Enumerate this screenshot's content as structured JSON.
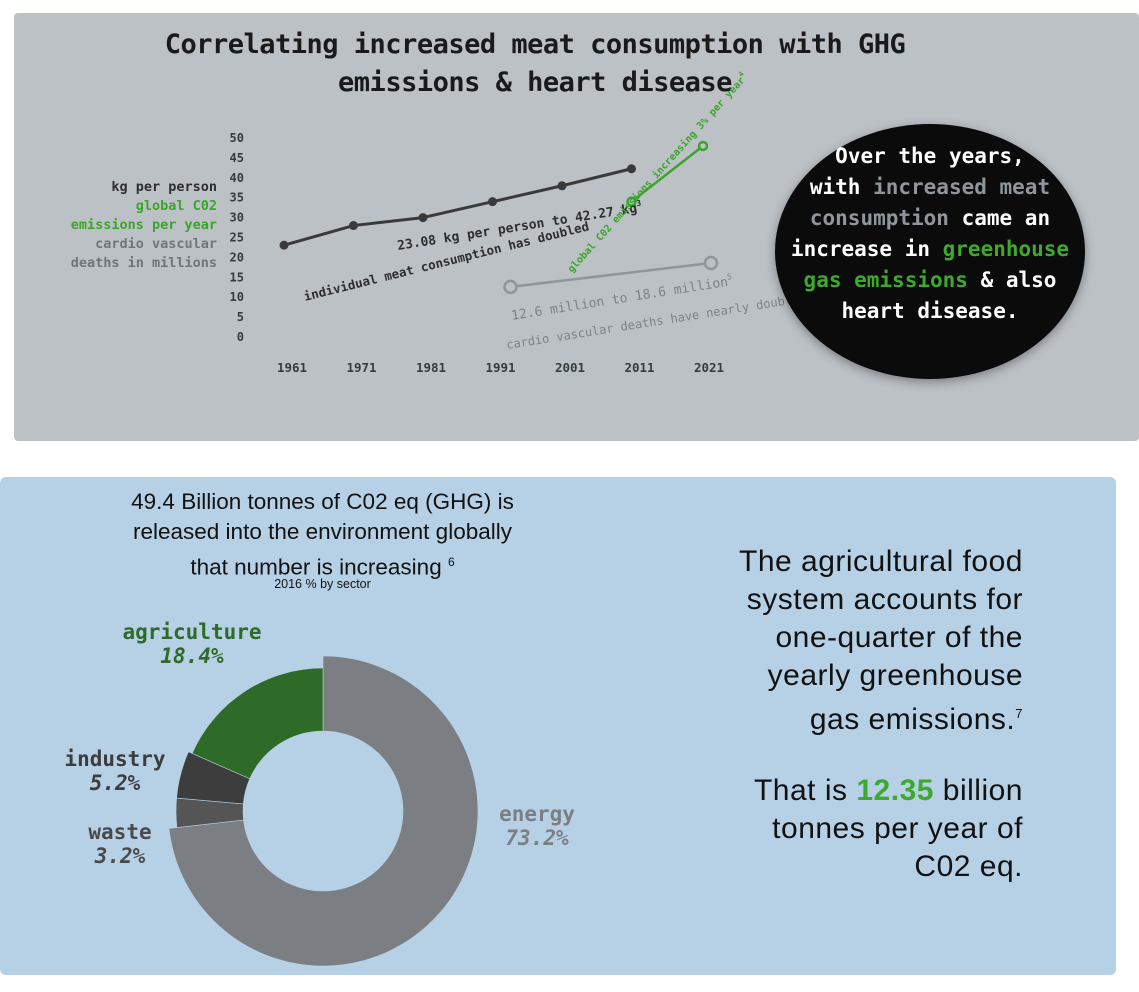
{
  "colors": {
    "meat": "#3a3a3a",
    "co2": "#3aa52a",
    "cardio": "#8f969b",
    "agriculture": "#2f6b28",
    "industry": "#3d3d3d",
    "waste": "#555555",
    "energy": "#7b7f83",
    "top_bg": "#bcc1c6",
    "bottom_bg": "#b6d1e6"
  },
  "top": {
    "title_line1": "Correlating increased meat consumption with GHG",
    "title_line2": "emissions & heart disease",
    "legend": {
      "meat": "kg per person",
      "co2_line1": "global C02",
      "co2_line2": "emissions per year",
      "cardio_line1": "cardio vascular",
      "cardio_line2": "deaths in millions"
    },
    "annotations": {
      "meat_range": "23.08 kg per person to 42.27 kg",
      "meat_ref": "3",
      "meat_note": "individual meat consumption has doubled",
      "co2_note": "global C02 emissions increasing 3% per year",
      "co2_ref": "4",
      "cardio_range": "12.6 million  to  18.6 million",
      "cardio_ref": "5",
      "cardio_note": "cardio vascular deaths have nearly doubled"
    },
    "circle": {
      "l1": "Over the years,",
      "l2a": "with ",
      "l2b": "increased meat",
      "l3a": "consumption",
      "l3b": " came an",
      "l4a": "increase in ",
      "l4b": "greenhouse",
      "l5a": "gas emissions",
      "l5b": " & also",
      "l6": "heart disease."
    }
  },
  "bottom": {
    "heading_l1": "49.4 Billion tonnes of C02 eq (GHG) is",
    "heading_l2": "released into the environment globally",
    "heading_l3": "that number is increasing",
    "heading_ref": "6",
    "subheading": "2016 % by sector",
    "labels": {
      "agriculture": "agriculture",
      "agriculture_pct": "18.4%",
      "industry": "industry",
      "industry_pct": "5.2%",
      "waste": "waste",
      "waste_pct": "3.2%",
      "energy": "energy",
      "energy_pct": "73.2%"
    },
    "right_l1": "The agricultural food",
    "right_l2": "system accounts for",
    "right_l3": "one-quarter of the",
    "right_l4": "yearly greenhouse",
    "right_l5": "gas emissions.",
    "right_ref": "7",
    "that_is": "That is ",
    "amount": "12.35",
    "after_amount": " billion",
    "right_l7": "tonnes per year of",
    "right_l8": "C02 eq."
  },
  "chart_data": [
    {
      "type": "line",
      "title": "Correlating increased meat consumption with GHG emissions & heart disease",
      "x_categories": [
        "1961",
        "1971",
        "1981",
        "1991",
        "2001",
        "2011",
        "2021"
      ],
      "y_ticks": [
        0,
        5,
        10,
        15,
        20,
        25,
        30,
        35,
        40,
        45,
        50
      ],
      "ylim": [
        0,
        50
      ],
      "grid": false,
      "series": [
        {
          "name": "kg per person",
          "x": [
            "1961",
            "1971",
            "1981",
            "1991",
            "2001",
            "2011"
          ],
          "values": [
            23.08,
            28,
            30,
            34,
            38,
            42.27
          ]
        },
        {
          "name": "global C02 emissions per year",
          "x": [
            "2011",
            "2021"
          ],
          "values": [
            34,
            48
          ]
        },
        {
          "name": "cardio vascular deaths in millions",
          "x": [
            "1991",
            "2021"
          ],
          "values": [
            12.6,
            18.6
          ]
        }
      ]
    },
    {
      "type": "pie",
      "title": "2016 % by sector",
      "categories": [
        "energy",
        "waste",
        "industry",
        "agriculture"
      ],
      "values": [
        73.2,
        3.2,
        5.2,
        18.4
      ]
    }
  ]
}
